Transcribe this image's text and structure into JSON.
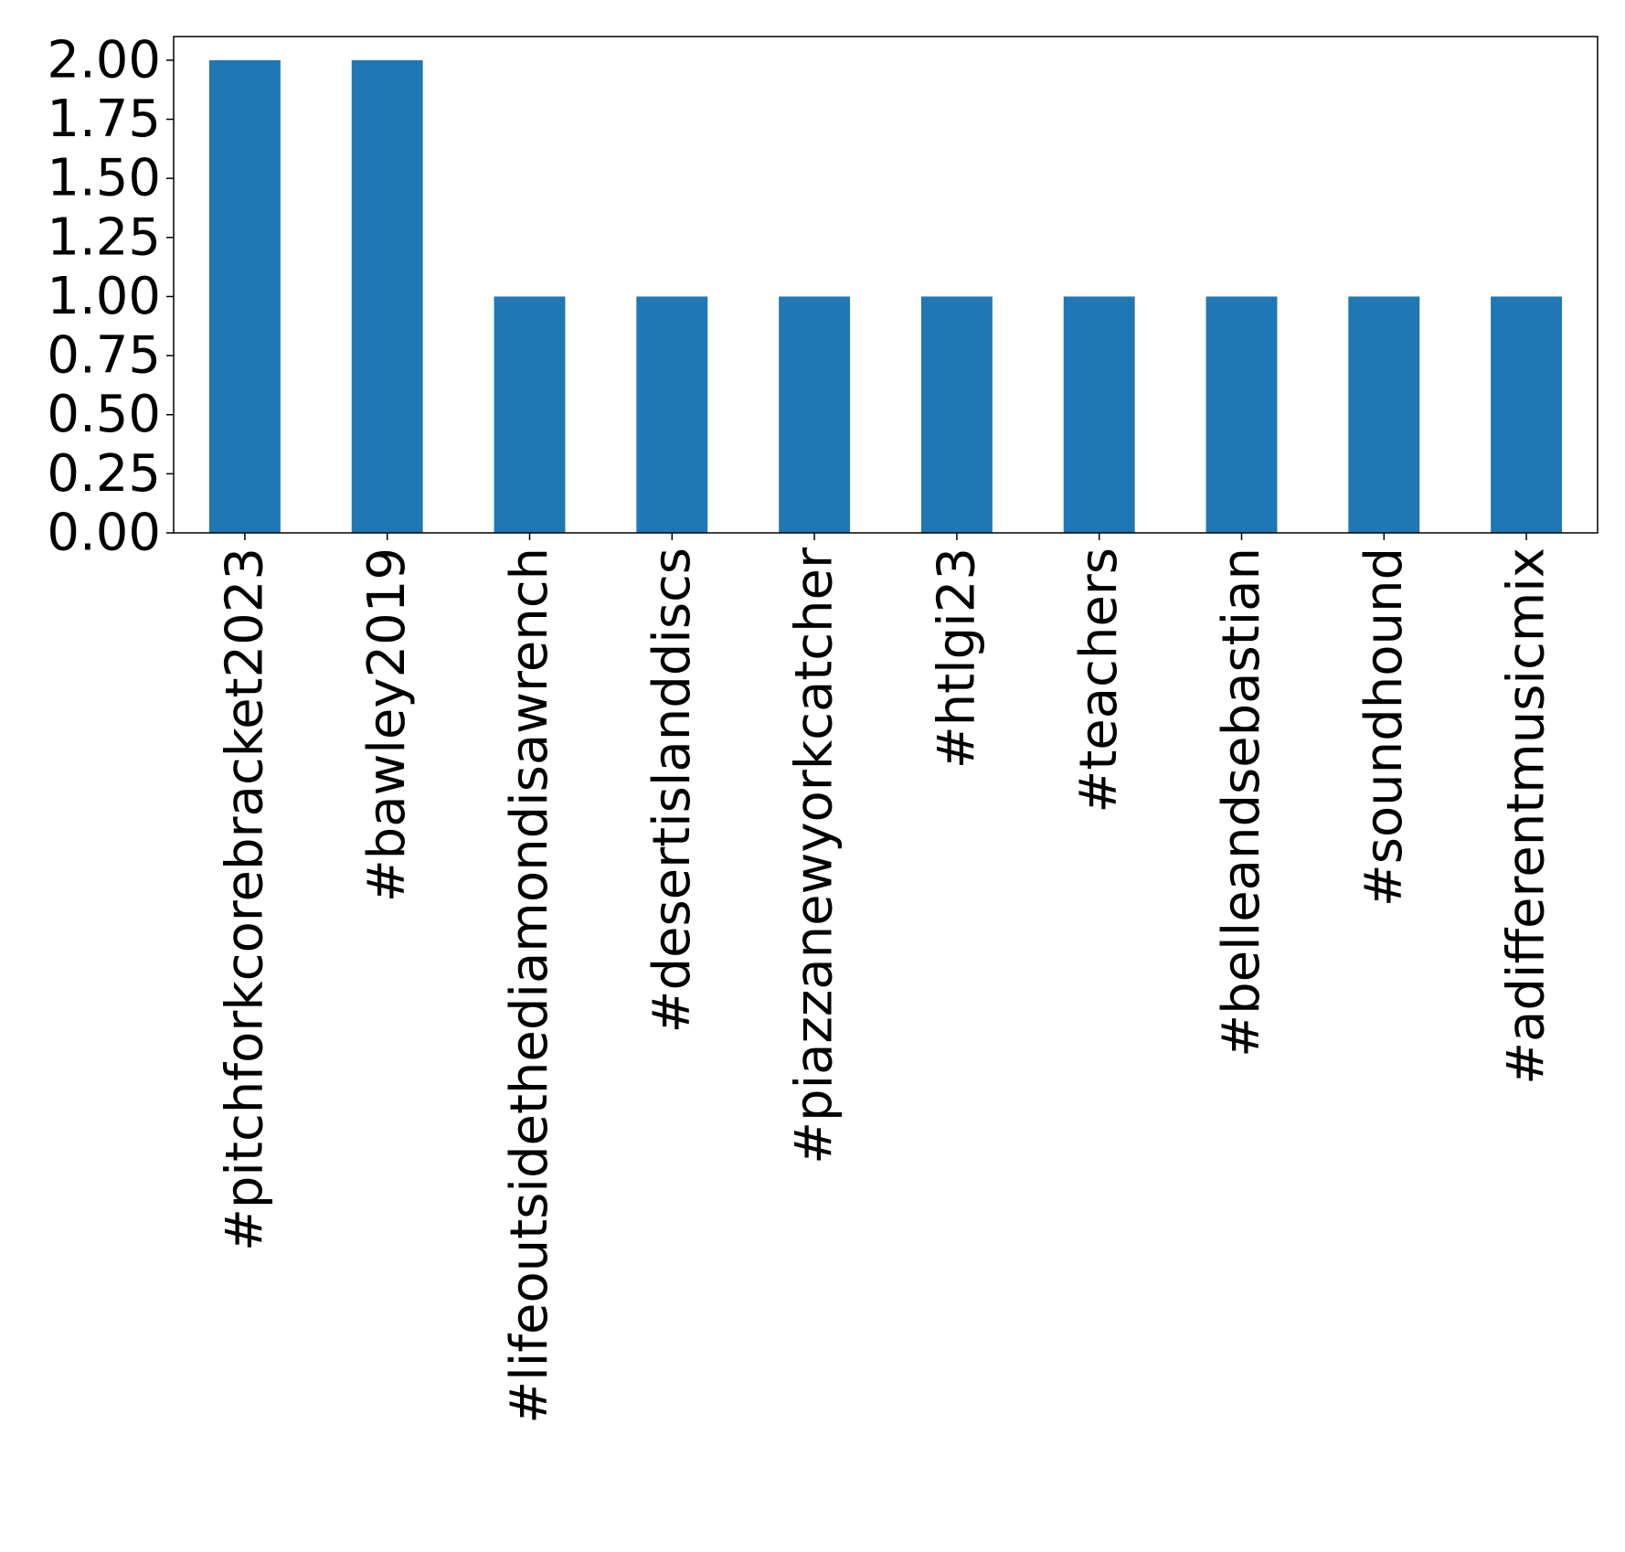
{
  "chart_data": {
    "type": "bar",
    "title": "",
    "xlabel": "",
    "ylabel": "",
    "categories": [
      "#pitchforkcorebracket2023",
      "#bawley2019",
      "#lifeoutsidethediamondisawrench",
      "#desertislanddiscs",
      "#piazzanewyorkcatcher",
      "#htlgi23",
      "#teachers",
      "#belleandsebastian",
      "#soundhound",
      "#adifferentmusicmix"
    ],
    "values": [
      2,
      2,
      1,
      1,
      1,
      1,
      1,
      1,
      1,
      1
    ],
    "ylim": [
      0,
      2.1
    ],
    "yticks": [
      0,
      0.25,
      0.5,
      0.75,
      1.0,
      1.25,
      1.5,
      1.75,
      2.0
    ],
    "ytick_labels": [
      "0.00",
      "0.25",
      "0.50",
      "0.75",
      "1.00",
      "1.25",
      "1.50",
      "1.75",
      "2.00"
    ],
    "xtick_rotation": 90,
    "grid": false,
    "legend": "none",
    "colors": {
      "bar": "#1f77b4",
      "axis": "#000000",
      "background": "#ffffff"
    }
  }
}
